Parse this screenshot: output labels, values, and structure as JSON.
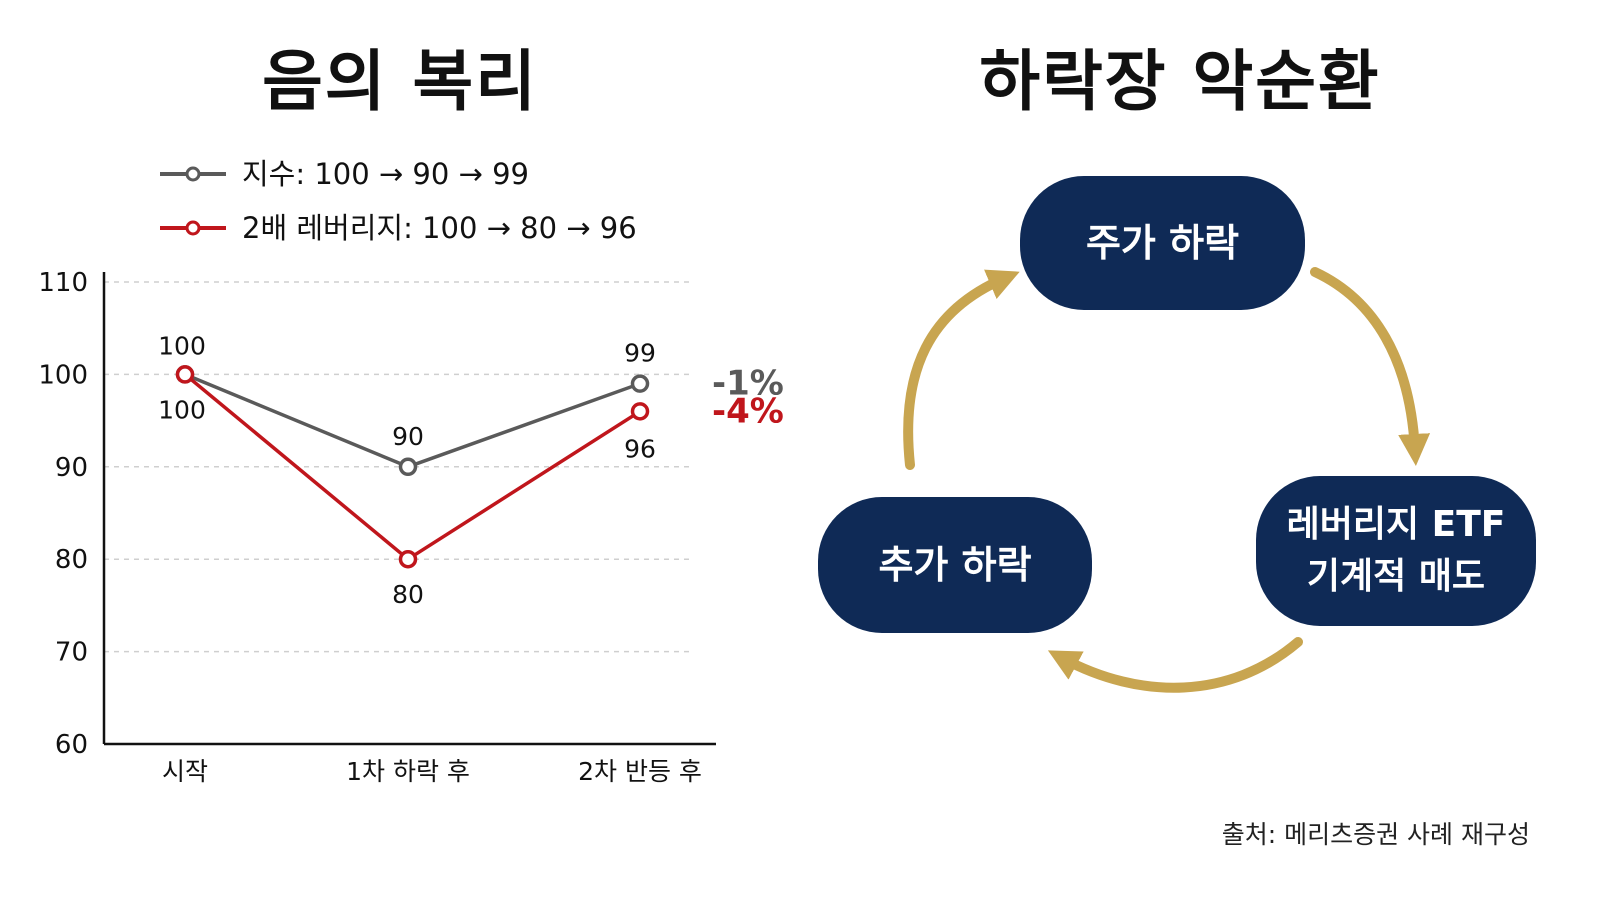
{
  "left": {
    "title": "음의 복리"
  },
  "right": {
    "title": "하락장 악순환"
  },
  "chart_data": {
    "type": "line",
    "categories": [
      "시작",
      "1차 하락 후",
      "2차 반등 후"
    ],
    "series": [
      {
        "name": "지수: 100 → 90 → 99",
        "values": [
          100,
          90,
          99
        ],
        "color": "#5a5a5a",
        "result": "-1%",
        "result_color": "#5a5a5a"
      },
      {
        "name": "2배 레버리지: 100 → 80 → 96",
        "values": [
          100,
          80,
          96
        ],
        "color": "#c0161c",
        "result": "-4%",
        "result_color": "#c0161c"
      }
    ],
    "y_ticks": [
      110,
      100,
      90,
      80,
      70,
      60
    ],
    "ylim": [
      60,
      110
    ],
    "grid": true,
    "legend_position": "top-left"
  },
  "cycle": {
    "nodes": [
      {
        "lines": [
          "주가 하락"
        ]
      },
      {
        "lines": [
          "레버리지 ETF",
          "기계적 매도"
        ]
      },
      {
        "lines": [
          "추가 하락"
        ]
      }
    ],
    "arrow_color": "#c8a550",
    "node_color": "#0f2a56"
  },
  "source": "출처: 메리츠증권 사례 재구성"
}
